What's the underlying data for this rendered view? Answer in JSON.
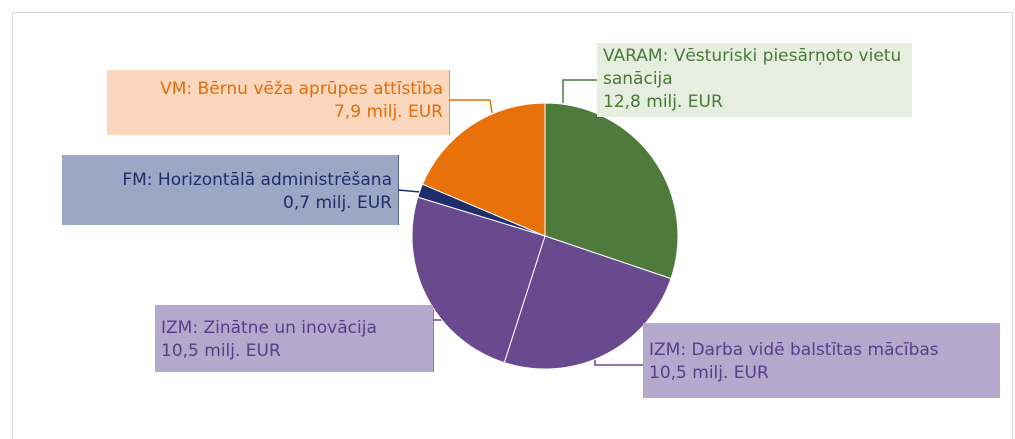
{
  "chart_data": {
    "type": "pie",
    "categories": [
      "VARAM: Vēsturiski piesārņoto vietu sanācija",
      "IZM: Darba vidē balstītas mācības",
      "IZM: Zinātne un inovācija",
      "FM: Horizontālā administrēšana",
      "VM: Bērnu vēža aprūpes attīstība"
    ],
    "values": [
      12.8,
      10.5,
      10.5,
      0.7,
      7.9
    ],
    "value_labels": [
      "12,8  milj. EUR",
      "10,5 milj. EUR",
      "10,5 milj. EUR",
      "0,7 milj. EUR",
      "7,9 milj. EUR"
    ],
    "colors": [
      "#4e7b3c",
      "#6a4a8f",
      "#6a4a8f",
      "#1f2d6b",
      "#e8710a"
    ]
  }
}
